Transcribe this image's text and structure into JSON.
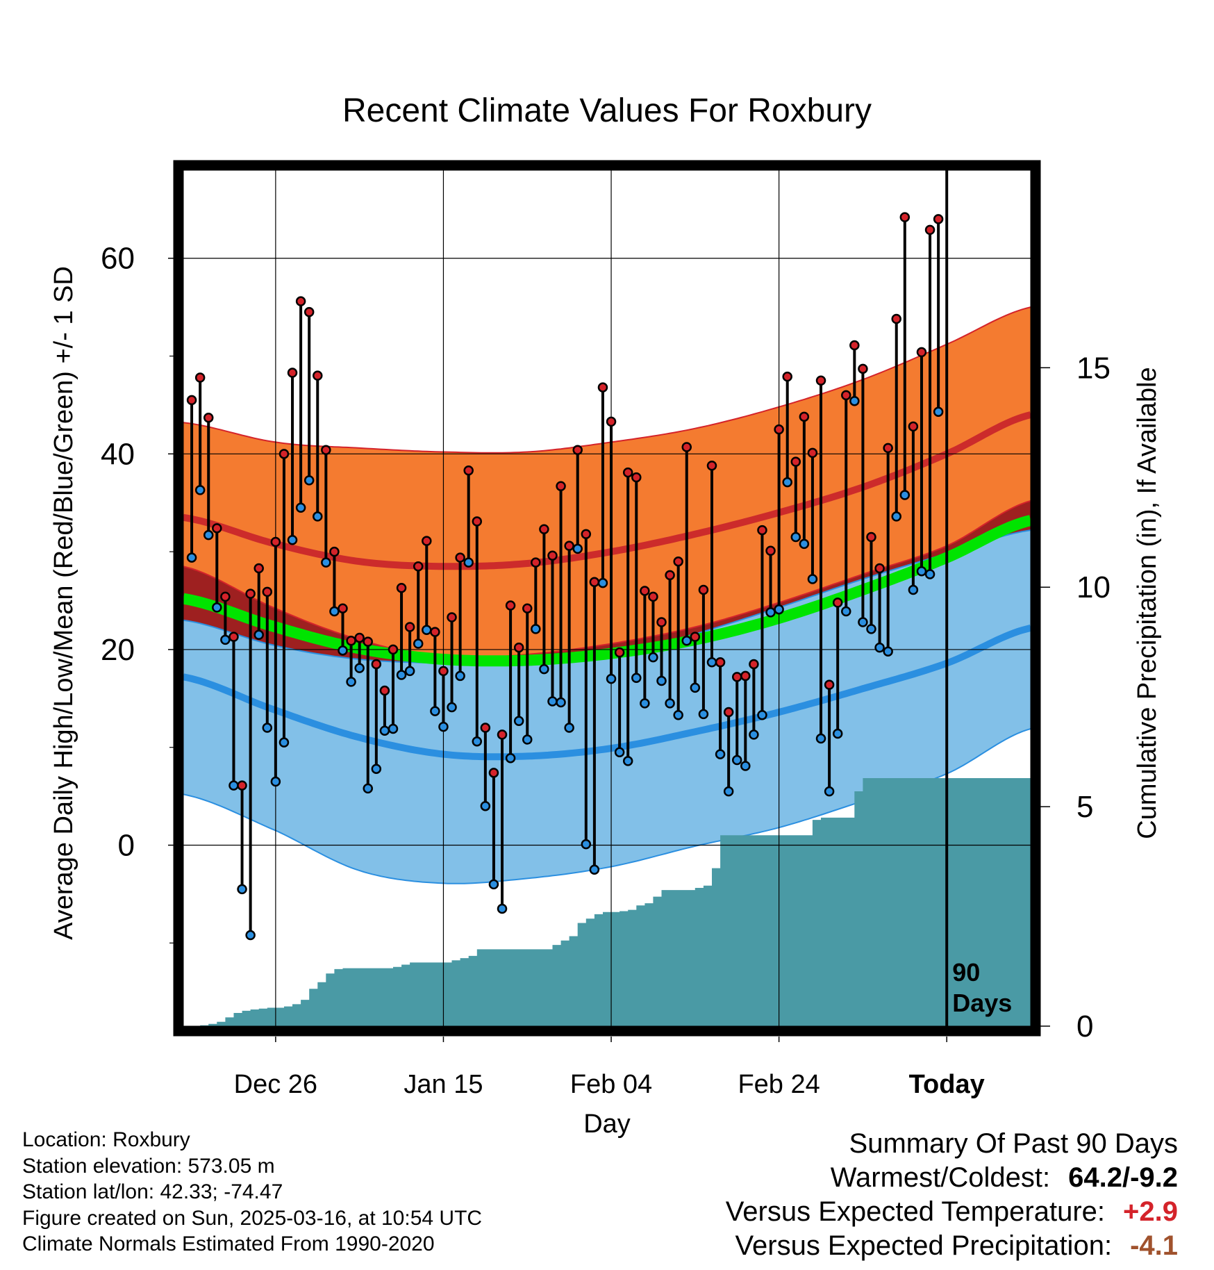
{
  "chart_data": {
    "type": "line",
    "title": "Recent Climate Values For Roxbury",
    "xlabel": "Day",
    "ylabel_left": "Average Daily High/Low/Mean (Red/Blue/Green) +/- 1 SD",
    "ylabel_right": "Cumulative Precipitation (in), If Available",
    "x_ticks": [
      "Dec 26",
      "Jan 15",
      "Feb 04",
      "Feb 24",
      "Today"
    ],
    "x_tick_days": [
      10,
      30,
      50,
      70,
      90
    ],
    "xlim": [
      -1,
      100
    ],
    "ylim_left": [
      -18.5,
      69
    ],
    "ylim_right": [
      0,
      19.5
    ],
    "y_ticks_left": [
      0,
      20,
      40,
      60
    ],
    "y_ticks_right": [
      0,
      5,
      10,
      15
    ],
    "today_marker": "90\nDays",
    "today_day": 90,
    "grid": true,
    "legend": "none",
    "normals": {
      "days": [
        -1,
        10,
        20,
        30,
        40,
        50,
        60,
        70,
        80,
        90,
        100
      ],
      "high_mean": [
        33.5,
        30.8,
        29.0,
        28.5,
        28.8,
        30.0,
        31.8,
        34.0,
        36.6,
        40.0,
        44.0
      ],
      "high_sd_upper": [
        43.2,
        41.2,
        40.6,
        40.2,
        40.2,
        41.2,
        42.6,
        44.8,
        47.6,
        51.2,
        55.0
      ],
      "high_sd_lower": [
        28.5,
        24.2,
        21.0,
        19.2,
        19.5,
        20.6,
        22.3,
        24.8,
        27.7,
        30.6,
        35.2
      ],
      "mean": [
        25.2,
        22.3,
        20.1,
        19.0,
        18.9,
        19.6,
        21.0,
        23.2,
        26.1,
        29.4,
        33.2
      ],
      "low_mean": [
        17.2,
        13.8,
        11.0,
        9.3,
        9.1,
        9.9,
        11.6,
        13.6,
        16.0,
        18.6,
        22.2
      ],
      "low_sd_upper": [
        23.0,
        20.4,
        19.0,
        18.6,
        18.4,
        19.4,
        21.6,
        24.3,
        27.2,
        29.8,
        32.2
      ],
      "low_sd_lower": [
        5.2,
        1.5,
        -2.6,
        -3.9,
        -3.4,
        -2.2,
        -0.1,
        1.8,
        4.5,
        7.3,
        11.9
      ]
    },
    "series": [
      {
        "name": "High",
        "color": "#d4232a",
        "values": [
          45.5,
          47.8,
          43.7,
          32.4,
          25.4,
          21.3,
          6.1,
          25.7,
          28.3,
          25.9,
          31.0,
          40.0,
          48.3,
          55.6,
          54.5,
          48.0,
          40.4,
          30.0,
          24.2,
          20.9,
          21.2,
          20.8,
          18.5,
          15.8,
          20.0,
          26.3,
          22.3,
          28.5,
          31.1,
          21.8,
          17.8,
          23.3,
          29.4,
          38.3,
          33.1,
          12.0,
          7.4,
          11.3,
          24.5,
          20.2,
          24.2,
          28.9,
          32.3,
          29.6,
          36.7,
          30.6,
          40.4,
          31.8,
          26.9,
          46.8,
          43.3,
          19.7,
          38.1,
          37.6,
          26.0,
          25.4,
          22.8,
          27.6,
          29.0,
          40.7,
          21.3,
          26.1,
          38.8,
          18.7,
          13.6,
          17.2,
          17.3,
          18.5,
          32.2,
          30.1,
          42.5,
          47.9,
          39.2,
          43.8,
          40.1,
          47.5,
          16.4,
          24.8,
          46.0,
          51.1,
          48.7,
          31.5,
          28.3,
          40.6,
          53.8,
          64.2,
          42.8,
          50.4,
          62.9,
          64.0
        ]
      },
      {
        "name": "Low",
        "color": "#2b8fe0",
        "values": [
          29.4,
          36.3,
          31.7,
          24.3,
          21.0,
          6.1,
          -4.5,
          -9.2,
          21.5,
          12.0,
          6.5,
          10.5,
          31.2,
          34.5,
          37.3,
          33.6,
          28.9,
          23.9,
          19.9,
          16.7,
          18.1,
          5.8,
          7.8,
          11.7,
          11.9,
          17.4,
          17.8,
          20.6,
          22.0,
          13.7,
          12.1,
          14.1,
          17.3,
          28.9,
          10.6,
          4.0,
          -4.0,
          -6.5,
          8.9,
          12.7,
          10.8,
          22.1,
          18.0,
          14.7,
          14.6,
          12.0,
          30.3,
          0.1,
          -2.5,
          26.8,
          17.0,
          9.5,
          8.6,
          17.1,
          14.5,
          19.2,
          16.8,
          14.5,
          13.3,
          20.9,
          16.1,
          13.4,
          18.7,
          9.3,
          5.5,
          8.7,
          8.1,
          11.3,
          13.3,
          23.8,
          24.1,
          37.1,
          31.5,
          30.8,
          27.2,
          10.9,
          5.5,
          11.4,
          23.9,
          45.4,
          22.8,
          22.1,
          20.2,
          19.8,
          33.6,
          35.8,
          26.1,
          28.0,
          27.7,
          44.3
        ]
      },
      {
        "name": "Precipitation",
        "color": "#4a9aa5",
        "values": [
          0.0,
          0.02,
          0.05,
          0.1,
          0.2,
          0.3,
          0.35,
          0.38,
          0.4,
          0.42,
          0.42,
          0.45,
          0.5,
          0.6,
          0.85,
          1.0,
          1.2,
          1.3,
          1.32,
          1.32,
          1.32,
          1.32,
          1.32,
          1.32,
          1.35,
          1.4,
          1.45,
          1.45,
          1.45,
          1.45,
          1.45,
          1.5,
          1.55,
          1.6,
          1.75,
          1.75,
          1.75,
          1.75,
          1.75,
          1.75,
          1.75,
          1.75,
          1.75,
          1.85,
          1.95,
          2.05,
          2.35,
          2.45,
          2.55,
          2.6,
          2.6,
          2.62,
          2.65,
          2.75,
          2.8,
          2.95,
          3.1,
          3.1,
          3.1,
          3.1,
          3.15,
          3.2,
          3.6,
          4.35,
          4.35,
          4.35,
          4.35,
          4.35,
          4.35,
          4.35,
          4.35,
          4.35,
          4.35,
          4.35,
          4.7,
          4.75,
          4.75,
          4.75,
          4.75,
          5.35,
          5.65,
          5.65,
          5.65,
          5.65,
          5.65,
          5.65,
          5.65,
          5.65,
          5.65,
          5.65,
          5.65,
          5.65,
          5.65,
          5.65,
          5.65,
          5.65,
          5.65,
          5.65,
          5.65,
          5.65,
          5.65
        ]
      }
    ]
  },
  "colors": {
    "high_band": "#f47b30",
    "high_mean": "#cc2b2b",
    "high_band_edge": "#d4232a",
    "mean_band": "#00e400",
    "overlap_band": "#991414",
    "low_band": "#82c0e8",
    "low_mean": "#2b8fe0",
    "low_band_edge": "#2b8fe0",
    "precip": "#4a9aa5",
    "positive_anomaly": "#d4232a",
    "negative_anomaly": "#a0522d"
  },
  "footer": {
    "location": "Location: Roxbury",
    "elevation": "Station elevation: 573.05 m",
    "latlon": "Station lat/lon: 42.33; -74.47",
    "created": "Figure created on Sun, 2025-03-16, at 10:54 UTC",
    "normals": "Climate Normals Estimated From 1990-2020"
  },
  "summary": {
    "heading": "Summary Of Past 90 Days",
    "warmest_label": "Warmest/Coldest:",
    "warmest_value": "64.2/-9.2",
    "temp_label": "Versus Expected Temperature:",
    "temp_value": "+2.9",
    "precip_label": "Versus Expected Precipitation:",
    "precip_value": "-4.1"
  }
}
